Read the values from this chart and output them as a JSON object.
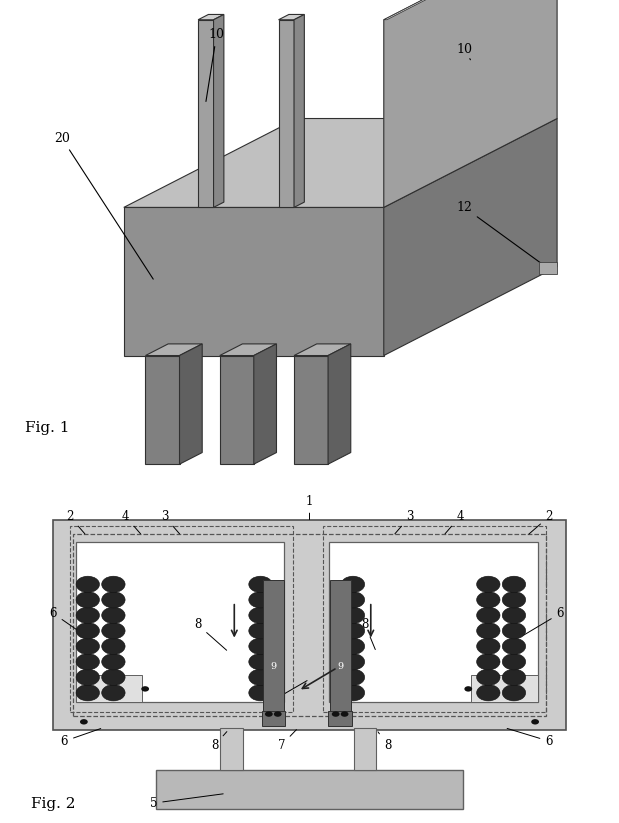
{
  "fig1_label": "Fig. 1",
  "fig2_label": "Fig. 2",
  "bg_color": "#ffffff",
  "gray_body_front": "#909090",
  "gray_body_top": "#c0c0c0",
  "gray_body_side": "#787878",
  "gray_fin_front": "#808080",
  "gray_fin_top": "#b0b0b0",
  "gray_fin_side": "#606060",
  "gray_plate_front": "#a0a0a0",
  "gray_plate_top": "#d0d0d0",
  "gray_plate_side": "#888888",
  "coil_color": "#252525",
  "core_bar_color": "#707070",
  "outer_rect_color": "#cccccc",
  "inner_rect_color": "#e0e0e0",
  "white_region_color": "#f0f0f0",
  "rail_color": "#b8b8b8",
  "dashed_color": "#555555",
  "annot_fontsize": 9,
  "fig_label_fontsize": 11
}
